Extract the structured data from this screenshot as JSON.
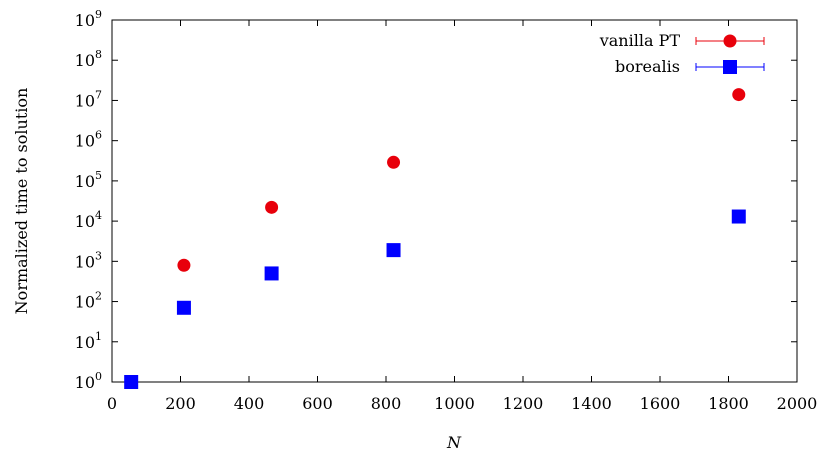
{
  "chart_data": {
    "type": "scatter",
    "xlabel": "N",
    "ylabel": "Normalized time to solution",
    "xlim": [
      0,
      2000
    ],
    "ylim": [
      1,
      1000000000
    ],
    "yscale": "log",
    "x_ticks": [
      0,
      200,
      400,
      600,
      800,
      1000,
      1200,
      1400,
      1600,
      1800,
      2000
    ],
    "y_tick_exponents": [
      0,
      1,
      2,
      3,
      4,
      5,
      6,
      7,
      8,
      9
    ],
    "y_tick_base": "10",
    "legend_position": "top-right",
    "grid": false,
    "series": [
      {
        "name": "vanilla PT",
        "marker": "circle",
        "color": "#e8000b",
        "points": [
          {
            "x": 210,
            "y": 800
          },
          {
            "x": 466,
            "y": 22000
          },
          {
            "x": 822,
            "y": 290000
          },
          {
            "x": 1830,
            "y": 14000000
          }
        ]
      },
      {
        "name": "borealis",
        "marker": "square",
        "color": "#0000ff",
        "points": [
          {
            "x": 56,
            "y": 1
          },
          {
            "x": 210,
            "y": 70
          },
          {
            "x": 466,
            "y": 500
          },
          {
            "x": 822,
            "y": 1900
          },
          {
            "x": 1830,
            "y": 13000
          }
        ]
      }
    ]
  }
}
